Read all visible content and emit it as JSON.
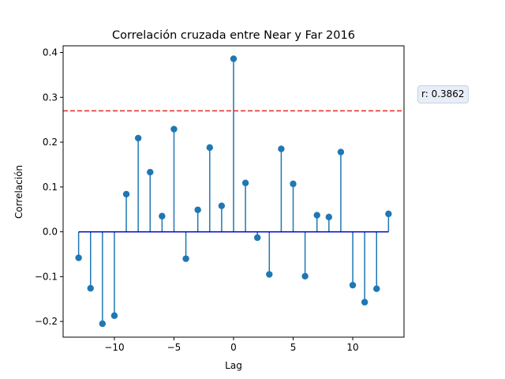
{
  "chart_data": {
    "type": "stem",
    "title": "Correlación cruzada entre Near y Far 2016",
    "xlabel": "Lag",
    "ylabel": "Correlación",
    "xlim": [
      -14.3,
      14.3
    ],
    "ylim": [
      -0.235,
      0.415
    ],
    "xticks": [
      -10,
      -5,
      0,
      5,
      10
    ],
    "xtick_labels": [
      "−10",
      "−5",
      "0",
      "5",
      "10"
    ],
    "yticks": [
      -0.2,
      -0.1,
      0.0,
      0.1,
      0.2,
      0.3,
      0.4
    ],
    "ytick_labels": [
      "−0.2",
      "−0.1",
      "0.0",
      "0.1",
      "0.2",
      "0.3",
      "0.4"
    ],
    "grid": false,
    "series": [
      {
        "x": [
          -13,
          -12,
          -11,
          -10,
          -9,
          -8,
          -7,
          -6,
          -5,
          -4,
          -3,
          -2,
          -1,
          0,
          1,
          2,
          3,
          4,
          5,
          6,
          7,
          8,
          9,
          10,
          11,
          12,
          13
        ],
        "y": [
          -0.058,
          -0.126,
          -0.205,
          -0.187,
          0.084,
          0.209,
          0.133,
          0.035,
          0.229,
          -0.06,
          0.049,
          0.188,
          0.058,
          0.386,
          0.109,
          -0.013,
          -0.095,
          0.185,
          0.107,
          -0.099,
          0.037,
          0.033,
          0.178,
          -0.119,
          -0.157,
          -0.127,
          0.04
        ],
        "color": "#1f77b4",
        "baseline_color": "#0000cc"
      }
    ],
    "reference_line": {
      "y": 0.27,
      "color": "#e8291c",
      "style": "dashed"
    },
    "annotation": {
      "text": "r: 0.3862"
    }
  }
}
